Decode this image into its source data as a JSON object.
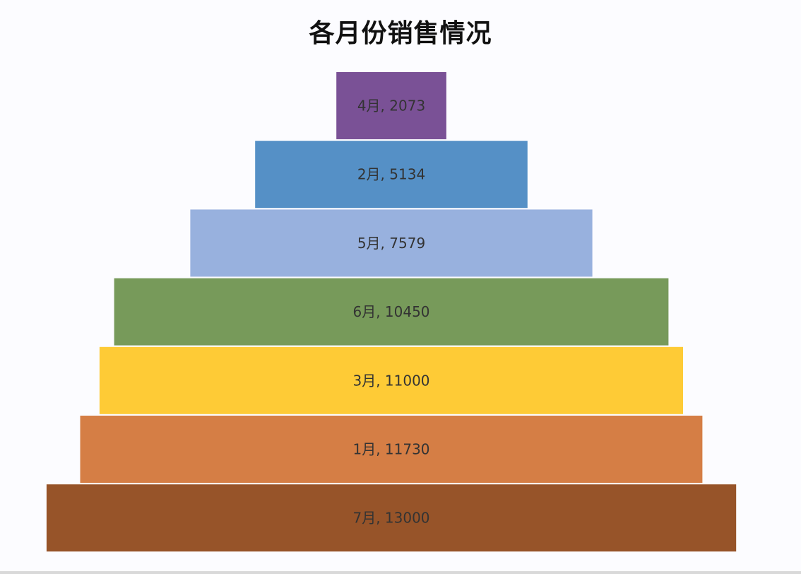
{
  "chart_data": {
    "type": "bar",
    "subtype": "funnel",
    "title": "各月份销售情况",
    "categories": [
      "4月",
      "2月",
      "5月",
      "6月",
      "3月",
      "1月",
      "7月"
    ],
    "values": [
      2073,
      5134,
      7579,
      10450,
      11000,
      11730,
      13000
    ],
    "labels": [
      "4月, 2073",
      "2月, 5134",
      "5月, 7579",
      "6月, 10450",
      "3月, 11000",
      "1月, 11730",
      "7月, 13000"
    ],
    "colors": [
      "#7a5196",
      "#5590c6",
      "#98b1de",
      "#779a5a",
      "#fecb36",
      "#d57e45",
      "#975429"
    ],
    "xlabel": "",
    "ylabel": "",
    "grid": false,
    "legend": "none"
  }
}
